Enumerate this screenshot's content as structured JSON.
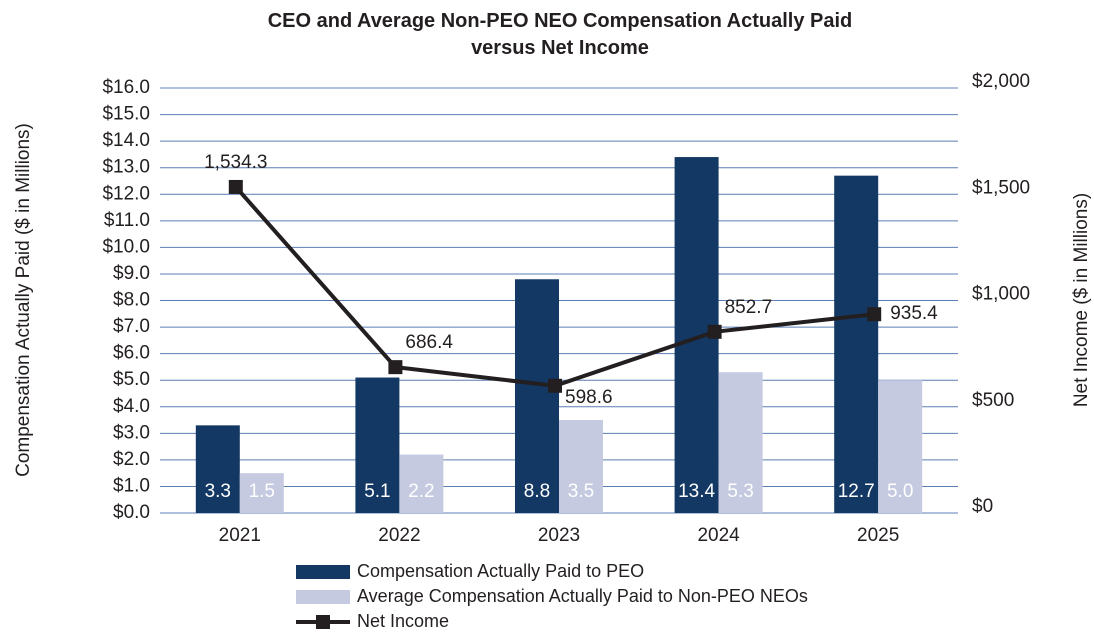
{
  "chart_data": {
    "type": "bar-line",
    "title": "CEO and Average Non-PEO NEO Compensation Actually Paid versus Net Income",
    "ylabel": "Compensation Actually Paid ($ in Millions)",
    "y2label": "Net Income ($ in Millions)",
    "categories": [
      "2021",
      "2022",
      "2023",
      "2024",
      "2025"
    ],
    "series": [
      {
        "name": "Compensation Actually Paid to PEO",
        "type": "bar",
        "color": "#133863",
        "values": [
          3.3,
          5.1,
          8.8,
          13.4,
          12.7
        ]
      },
      {
        "name": "Average Compensation Actually Paid to Non-PEO NEOs",
        "type": "bar",
        "color": "#c5cae0",
        "values": [
          1.5,
          2.2,
          3.5,
          5.3,
          5.0
        ],
        "value_labels": [
          "1.5",
          "2.2",
          "3.5",
          "5.3",
          "5.0"
        ]
      },
      {
        "name": "Net Income",
        "type": "line",
        "axis": "y2",
        "color": "#231f20",
        "values": [
          1534.3,
          686.4,
          598.6,
          852.7,
          935.4
        ],
        "value_labels": [
          "1,534.3",
          "686.4",
          "598.6",
          "852.7",
          "935.4"
        ]
      }
    ],
    "ylim": [
      0,
      16
    ],
    "yticks": [
      {
        "value": 0,
        "label": "$0.0"
      },
      {
        "value": 1,
        "label": "$1.0"
      },
      {
        "value": 2,
        "label": "$2.0"
      },
      {
        "value": 3,
        "label": "$3.0"
      },
      {
        "value": 4,
        "label": "$4.0"
      },
      {
        "value": 5,
        "label": "$5.0"
      },
      {
        "value": 6,
        "label": "$6.0"
      },
      {
        "value": 7,
        "label": "$7.0"
      },
      {
        "value": 8,
        "label": "$8.0"
      },
      {
        "value": 9,
        "label": "$9.0"
      },
      {
        "value": 10,
        "label": "$10.0"
      },
      {
        "value": 11,
        "label": "$11.0"
      },
      {
        "value": 12,
        "label": "$12.0"
      },
      {
        "value": 13,
        "label": "$13.0"
      },
      {
        "value": 14,
        "label": "$14.0"
      },
      {
        "value": 15,
        "label": "$15.0"
      },
      {
        "value": 16,
        "label": "$16.0"
      }
    ],
    "y2lim": [
      0,
      2000
    ],
    "y2ticks": [
      {
        "value": 0,
        "label": "$0"
      },
      {
        "value": 500,
        "label": "$500"
      },
      {
        "value": 1000,
        "label": "$1,000"
      },
      {
        "value": 1500,
        "label": "$1,500"
      },
      {
        "value": 2000,
        "label": "$2,000"
      }
    ],
    "grid": true,
    "grid_color": "#5b7fb5",
    "legend": "bottom"
  }
}
